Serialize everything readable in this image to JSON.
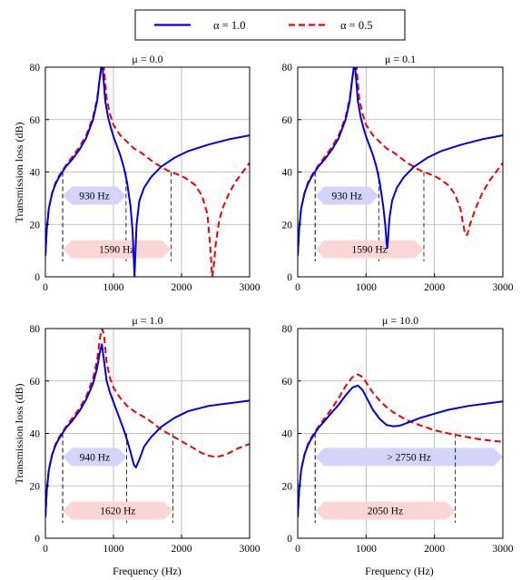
{
  "legend": [
    {
      "label": "α = 1.0",
      "color": "#0000dd",
      "style": "solid"
    },
    {
      "label": "α = 0.5",
      "color": "#ee0000",
      "style": "dashed"
    }
  ],
  "xlabel": "Frequency (Hz)",
  "ylabel": "Transmission loss (dB)",
  "chart_data": [
    {
      "type": "line",
      "title": "μ = 0.0",
      "xlim": [
        0,
        3000
      ],
      "ylim": [
        0,
        80
      ],
      "xticks": [
        0,
        1000,
        2000,
        3000
      ],
      "yticks": [
        0,
        20,
        40,
        60,
        80
      ],
      "grid": true,
      "series": [
        {
          "name": "α = 1.0",
          "x": [
            0,
            20,
            50,
            100,
            150,
            200,
            250,
            300,
            400,
            500,
            600,
            700,
            760,
            800,
            820,
            840,
            880,
            920,
            960,
            1000,
            1050,
            1100,
            1150,
            1200,
            1250,
            1280,
            1300,
            1310,
            1320,
            1340,
            1380,
            1450,
            1550,
            1700,
            1900,
            2100,
            2400,
            2700,
            3000
          ],
          "y": [
            8,
            18,
            26,
            32,
            35.5,
            38,
            40,
            42,
            45,
            48.5,
            53,
            60,
            67,
            76,
            80,
            80,
            67,
            61,
            57,
            53.5,
            50,
            46.5,
            42,
            36,
            27,
            18,
            6,
            0,
            8,
            20,
            29,
            34,
            38,
            42,
            45.5,
            48,
            50.5,
            52.5,
            54
          ]
        },
        {
          "name": "α = 0.5",
          "x": [
            0,
            20,
            50,
            100,
            150,
            200,
            250,
            300,
            400,
            500,
            600,
            700,
            760,
            800,
            830,
            860,
            900,
            950,
            1000,
            1100,
            1200,
            1300,
            1400,
            1500,
            1600,
            1700,
            1800,
            1900,
            2000,
            2100,
            2200,
            2300,
            2380,
            2420,
            2450,
            2470,
            2500,
            2550,
            2600,
            2700,
            2800,
            2900,
            3000
          ],
          "y": [
            8,
            18,
            26,
            32,
            36,
            38.5,
            40.5,
            42.5,
            46,
            49.5,
            54,
            61,
            68,
            76,
            80,
            80,
            68,
            62,
            58,
            54,
            51.5,
            49,
            47.5,
            45.5,
            43.5,
            42,
            40.5,
            39.5,
            38.5,
            37,
            35,
            31,
            24,
            12,
            0,
            3,
            12,
            21,
            26,
            32,
            36.5,
            40,
            43.5
          ]
        }
      ],
      "bands": [
        {
          "label": "930 Hz",
          "x_start": 255,
          "x_end": 1185,
          "y": 31,
          "color": "#d4d4fb",
          "marker_top": 40
        },
        {
          "label": "1590 Hz",
          "x_start": 255,
          "x_end": 1845,
          "y": 10.5,
          "color": "#fbd6d6",
          "marker_top": 40
        }
      ]
    },
    {
      "type": "line",
      "title": "μ = 0.1",
      "xlim": [
        0,
        3000
      ],
      "ylim": [
        0,
        80
      ],
      "xticks": [
        0,
        1000,
        2000,
        3000
      ],
      "yticks": [
        0,
        20,
        40,
        60,
        80
      ],
      "grid": true,
      "series": [
        {
          "name": "α = 1.0",
          "x": [
            0,
            20,
            50,
            100,
            150,
            200,
            250,
            300,
            400,
            500,
            600,
            700,
            760,
            800,
            820,
            840,
            880,
            920,
            960,
            1000,
            1050,
            1100,
            1150,
            1200,
            1250,
            1280,
            1300,
            1310,
            1320,
            1340,
            1380,
            1450,
            1550,
            1700,
            1900,
            2100,
            2400,
            2700,
            3000
          ],
          "y": [
            8,
            18,
            26,
            32,
            35.5,
            38,
            40,
            42,
            45,
            48.5,
            53,
            60,
            67,
            76,
            80,
            80,
            67,
            61,
            57,
            53.5,
            50,
            46.5,
            42,
            36,
            27,
            20,
            13,
            11,
            14,
            22,
            29,
            34,
            38,
            42,
            45.5,
            48,
            50.5,
            52.5,
            54
          ]
        },
        {
          "name": "α = 0.5",
          "x": [
            0,
            20,
            50,
            100,
            150,
            200,
            250,
            300,
            400,
            500,
            600,
            700,
            760,
            800,
            830,
            860,
            900,
            950,
            1000,
            1100,
            1200,
            1300,
            1400,
            1500,
            1600,
            1700,
            1800,
            1900,
            2000,
            2100,
            2200,
            2300,
            2380,
            2420,
            2450,
            2480,
            2520,
            2600,
            2700,
            2800,
            2900,
            3000
          ],
          "y": [
            8,
            18,
            26,
            32,
            36,
            38.5,
            40.5,
            42.5,
            46,
            49.5,
            54,
            61,
            68,
            76,
            80,
            80,
            68,
            62,
            58,
            54,
            51.5,
            49,
            47.5,
            45.5,
            43.5,
            42,
            40.5,
            39.5,
            38.5,
            37,
            35,
            31.5,
            26,
            20,
            16,
            16,
            20,
            26,
            32,
            36.5,
            40,
            43.5
          ]
        }
      ],
      "bands": [
        {
          "label": "930 Hz",
          "x_start": 255,
          "x_end": 1185,
          "y": 31,
          "color": "#d4d4fb",
          "marker_top": 40
        },
        {
          "label": "1590 Hz",
          "x_start": 255,
          "x_end": 1845,
          "y": 10.5,
          "color": "#fbd6d6",
          "marker_top": 40
        }
      ]
    },
    {
      "type": "line",
      "title": "μ = 1.0",
      "xlim": [
        0,
        3000
      ],
      "ylim": [
        0,
        80
      ],
      "xticks": [
        0,
        1000,
        2000,
        3000
      ],
      "yticks": [
        0,
        20,
        40,
        60,
        80
      ],
      "grid": true,
      "series": [
        {
          "name": "α = 1.0",
          "x": [
            0,
            20,
            50,
            100,
            150,
            200,
            250,
            300,
            400,
            500,
            600,
            700,
            760,
            800,
            830,
            860,
            900,
            950,
            1000,
            1050,
            1100,
            1150,
            1200,
            1250,
            1300,
            1330,
            1380,
            1450,
            1550,
            1700,
            1900,
            2100,
            2400,
            2700,
            3000
          ],
          "y": [
            8,
            18,
            26,
            32,
            35.5,
            38,
            40,
            42,
            45,
            48.5,
            53,
            59,
            65,
            71,
            74,
            68,
            60,
            55.5,
            52,
            48.5,
            45,
            41.5,
            37.5,
            33,
            28,
            27,
            30,
            35,
            38.5,
            42.5,
            46,
            48.5,
            50.5,
            51.5,
            52.5
          ]
        },
        {
          "name": "α = 0.5",
          "x": [
            0,
            20,
            50,
            100,
            150,
            200,
            250,
            300,
            400,
            500,
            600,
            700,
            760,
            800,
            830,
            860,
            900,
            950,
            1000,
            1100,
            1200,
            1300,
            1400,
            1500,
            1600,
            1700,
            1800,
            1900,
            2000,
            2100,
            2200,
            2300,
            2400,
            2500,
            2600,
            2700,
            2800,
            2900,
            3000
          ],
          "y": [
            8,
            18,
            26,
            32,
            36,
            38.5,
            40.5,
            42.5,
            46,
            49.5,
            54,
            61,
            68,
            76,
            80,
            78,
            67,
            61,
            57.5,
            53.5,
            50.5,
            48.5,
            47,
            45.5,
            43.5,
            41.5,
            40,
            38.5,
            37,
            35.5,
            34,
            32.5,
            31.5,
            31,
            31.5,
            32.5,
            34,
            35,
            36
          ]
        }
      ],
      "bands": [
        {
          "label": "940 Hz",
          "x_start": 255,
          "x_end": 1195,
          "y": 31,
          "color": "#d4d4fb",
          "marker_top": 40
        },
        {
          "label": "1620 Hz",
          "x_start": 255,
          "x_end": 1875,
          "y": 10.5,
          "color": "#fbd6d6",
          "marker_top": 40
        }
      ]
    },
    {
      "type": "line",
      "title": "μ = 10.0",
      "xlim": [
        0,
        3000
      ],
      "ylim": [
        0,
        80
      ],
      "xticks": [
        0,
        1000,
        2000,
        3000
      ],
      "yticks": [
        0,
        20,
        40,
        60,
        80
      ],
      "grid": true,
      "series": [
        {
          "name": "α = 1.0",
          "x": [
            0,
            20,
            50,
            100,
            150,
            200,
            250,
            300,
            400,
            500,
            600,
            700,
            800,
            880,
            950,
            1000,
            1100,
            1200,
            1300,
            1400,
            1500,
            1600,
            1800,
            2000,
            2200,
            2500,
            2800,
            3000
          ],
          "y": [
            8,
            18,
            26,
            32,
            35.5,
            38,
            40,
            42,
            45,
            48,
            51,
            54.5,
            57.5,
            58.3,
            56.5,
            54,
            49,
            45.5,
            43.2,
            42.7,
            43,
            44,
            46,
            47.5,
            49,
            50.5,
            51.5,
            52.2
          ]
        },
        {
          "name": "α = 0.5",
          "x": [
            0,
            20,
            50,
            100,
            150,
            200,
            250,
            300,
            400,
            500,
            600,
            700,
            800,
            880,
            950,
            1000,
            1100,
            1200,
            1300,
            1400,
            1500,
            1600,
            1800,
            2000,
            2200,
            2400,
            2600,
            2800,
            3000
          ],
          "y": [
            8,
            18,
            26,
            32,
            36,
            38.5,
            40.5,
            42.5,
            46,
            49.5,
            53.5,
            58,
            61.5,
            62.5,
            61.5,
            59.5,
            55.5,
            52.5,
            50,
            48,
            46.5,
            45,
            43,
            41.2,
            40,
            39,
            38,
            37.3,
            36.8
          ]
        }
      ],
      "bands": [
        {
          "label": "> 2750 Hz",
          "x_start": 255,
          "x_end": 3000,
          "y": 31,
          "color": "#d4d4fb",
          "marker_top": 40
        },
        {
          "label": "2050 Hz",
          "x_start": 255,
          "x_end": 2305,
          "y": 10.5,
          "color": "#fbd6d6",
          "marker_top": 40
        }
      ]
    }
  ]
}
